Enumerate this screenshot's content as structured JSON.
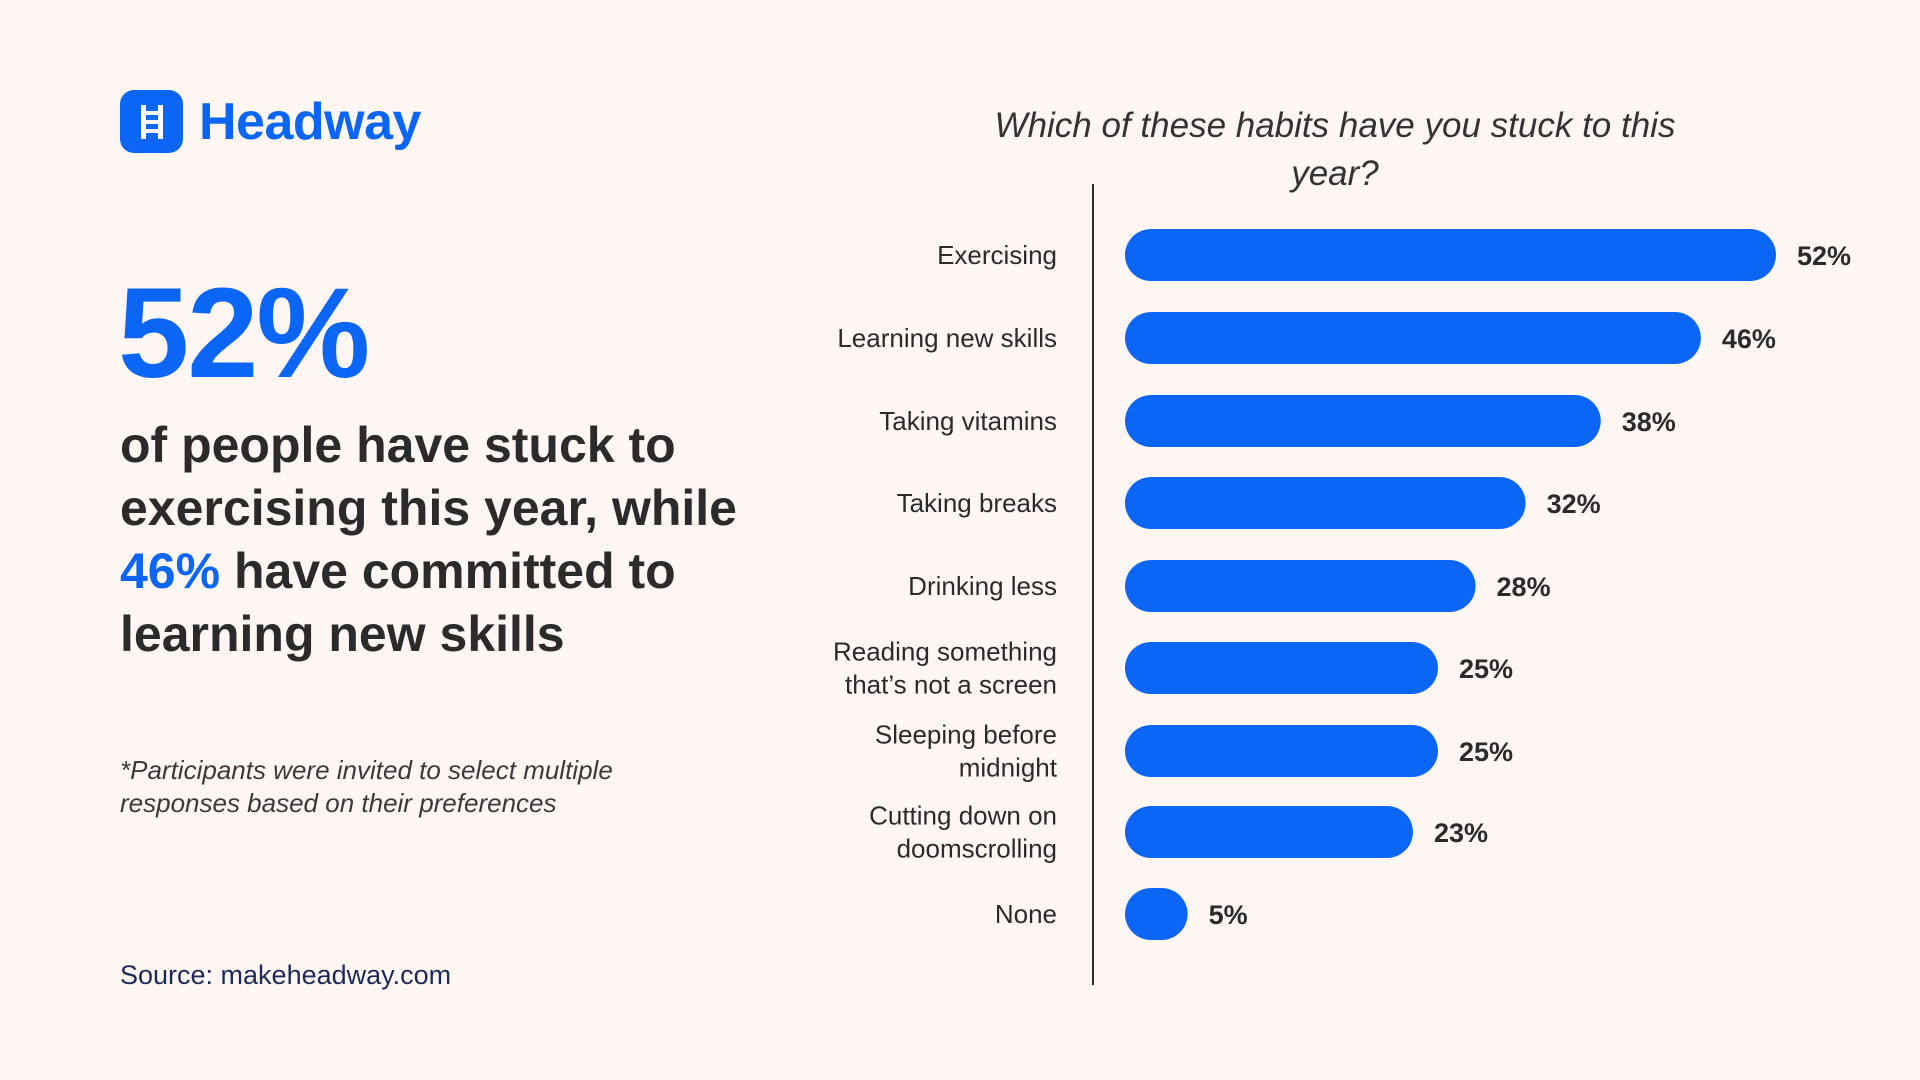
{
  "brand": {
    "name": "Headway",
    "logo_icon": "ladder-icon",
    "accent_color": "#0b66f6"
  },
  "headline": {
    "stat": "52%",
    "line_a": "of people have stuck to exercising this year, while ",
    "highlight": "46%",
    "line_b": " have committed to learning new skills"
  },
  "footnote": "*Participants were invited to select multiple responses based on their preferences",
  "source": "Source: makeheadway.com",
  "chart_data": {
    "type": "bar",
    "orientation": "horizontal",
    "title": "Which of these habits have you stuck to this year?",
    "xlabel": "",
    "ylabel": "",
    "xlim": [
      0,
      52
    ],
    "grid": false,
    "bar_color": "#0b66f6",
    "categories": [
      [
        "Exercising"
      ],
      [
        "Learning new skills"
      ],
      [
        "Taking vitamins"
      ],
      [
        "Taking breaks"
      ],
      [
        "Drinking less"
      ],
      [
        "Reading something",
        "that’s not a screen"
      ],
      [
        "Sleeping before",
        "midnight"
      ],
      [
        "Cutting down on",
        "doomscrolling"
      ],
      [
        "None"
      ]
    ],
    "values": [
      52,
      46,
      38,
      32,
      28,
      25,
      25,
      23,
      5
    ],
    "value_labels": [
      "52%",
      "46%",
      "38%",
      "32%",
      "28%",
      "25%",
      "25%",
      "23%",
      "5%"
    ]
  }
}
